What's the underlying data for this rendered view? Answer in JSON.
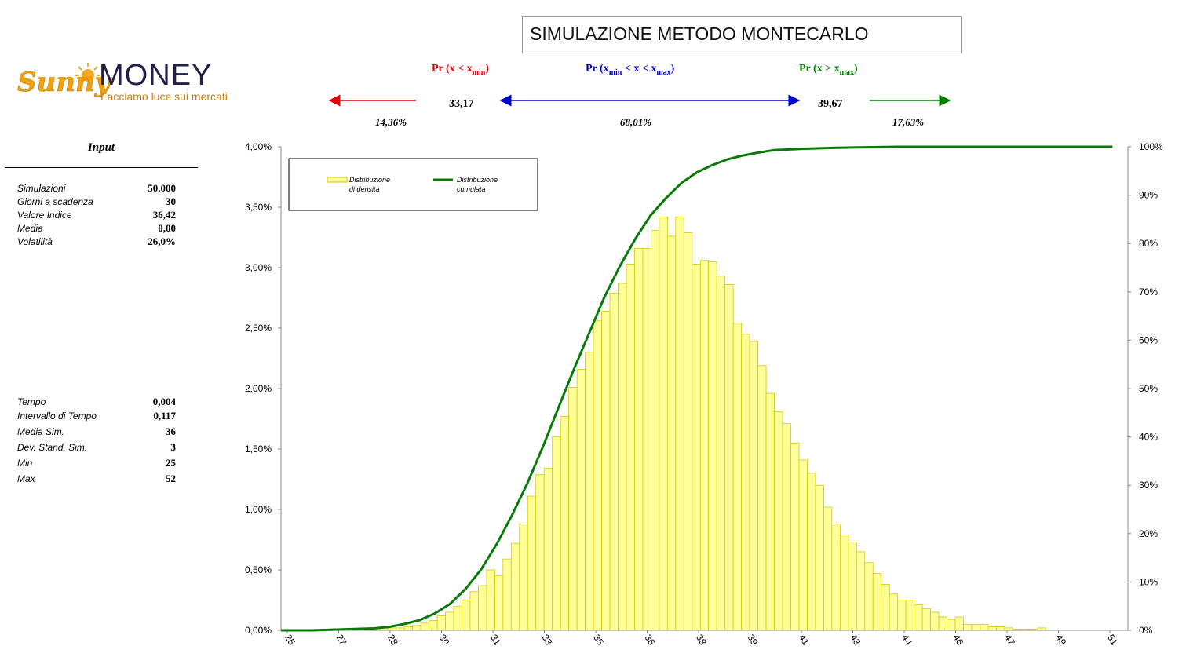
{
  "title": "SIMULAZIONE METODO MONTECARLO",
  "logo": {
    "sunny": "Sunny",
    "money": "MONEY",
    "tagline": "Facciamo luce sui mercati"
  },
  "probabilities": {
    "below": {
      "head": "Pr (x < x",
      "sub": "min",
      "tail": ")",
      "value": "14,36%",
      "color": "#e00000"
    },
    "between": {
      "head1": "Pr (x",
      "sub1": "min",
      "head2": " < x < x",
      "sub2": "max",
      "tail": ")",
      "value": "68,01%",
      "color": "#0000cc"
    },
    "above": {
      "head": "Pr (x > x",
      "sub": "max",
      "tail": ")",
      "value": "17,63%",
      "color": "#008000"
    },
    "xmin": "33,17",
    "xmax": "39,67"
  },
  "input": {
    "title": "Input",
    "params1": [
      {
        "label": "Simulazioni",
        "value": "50.000"
      },
      {
        "label": "Giorni a scadenza",
        "value": "30"
      },
      {
        "label": "Valore Indice",
        "value": "36,42"
      },
      {
        "label": "Media",
        "value": "0,00"
      },
      {
        "label": "Volatilità",
        "value": "26,0%"
      }
    ],
    "params2": [
      {
        "label": "Tempo",
        "value": "0,004"
      },
      {
        "label": "Intervallo di Tempo",
        "value": "0,117"
      },
      {
        "label": "Media Sim.",
        "value": "36"
      },
      {
        "label": "Dev. Stand. Sim.",
        "value": "3"
      },
      {
        "label": "Min",
        "value": "25"
      },
      {
        "label": "Max",
        "value": "52"
      }
    ]
  },
  "chart_data": {
    "type": "bar",
    "legend": [
      {
        "name": "Distribuzione di densità",
        "line1": "Distribuzione",
        "line2": "di densità",
        "color": "#ffff99",
        "edge": "#d4c800"
      },
      {
        "name": "Distribuzione cumulata",
        "line1": "Distribuzione",
        "line2": "cumulata",
        "color": "#087a08"
      }
    ],
    "legend_position": "top-left",
    "y_left_ticks": [
      "0,00%",
      "0,50%",
      "1,00%",
      "1,50%",
      "2,00%",
      "2,50%",
      "3,00%",
      "3,50%",
      "4,00%"
    ],
    "y_left_range": [
      0,
      4
    ],
    "y_right_ticks": [
      "0%",
      "10%",
      "20%",
      "30%",
      "40%",
      "50%",
      "60%",
      "70%",
      "80%",
      "90%",
      "100%"
    ],
    "y_right_range": [
      0,
      100
    ],
    "x_ticks": [
      "25",
      "27",
      "28",
      "30",
      "31",
      "33",
      "35",
      "36",
      "38",
      "39",
      "41",
      "43",
      "44",
      "46",
      "47",
      "49",
      "51"
    ],
    "series": [
      {
        "name": "Distribuzione di densità",
        "values": [
          0,
          0,
          0,
          0,
          0,
          0,
          0,
          0,
          0,
          0.01,
          0.01,
          0.02,
          0.02,
          0.02,
          0.02,
          0.03,
          0.04,
          0.06,
          0.08,
          0.12,
          0.15,
          0.2,
          0.25,
          0.32,
          0.37,
          0.5,
          0.45,
          0.59,
          0.72,
          0.88,
          1.11,
          1.29,
          1.34,
          1.6,
          1.77,
          2.01,
          2.16,
          2.3,
          2.56,
          2.64,
          2.79,
          2.87,
          3.03,
          3.16,
          3.16,
          3.31,
          3.42,
          3.26,
          3.42,
          3.29,
          3.03,
          3.06,
          3.05,
          2.93,
          2.86,
          2.54,
          2.45,
          2.39,
          2.19,
          1.96,
          1.81,
          1.71,
          1.55,
          1.41,
          1.3,
          1.2,
          1.02,
          0.88,
          0.79,
          0.73,
          0.65,
          0.56,
          0.47,
          0.38,
          0.3,
          0.25,
          0.25,
          0.21,
          0.18,
          0.15,
          0.11,
          0.09,
          0.11,
          0.05,
          0.05,
          0.05,
          0.03,
          0.03,
          0.02,
          0.01,
          0.01,
          0.01,
          0.02,
          0,
          0,
          0,
          0,
          0,
          0,
          0,
          0,
          0,
          0
        ]
      },
      {
        "name": "Distribuzione cumulata",
        "x": [
          25,
          26,
          27,
          28,
          28.5,
          29,
          29.5,
          30,
          30.5,
          31,
          31.5,
          32,
          32.5,
          33,
          33.5,
          34,
          34.5,
          35,
          35.5,
          36,
          36.5,
          37,
          37.5,
          38,
          38.5,
          39,
          39.5,
          40,
          40.5,
          41,
          42,
          43,
          44,
          45,
          46,
          47,
          48,
          49,
          50,
          51,
          52
        ],
        "values": [
          0,
          0,
          0.2,
          0.4,
          0.7,
          1.3,
          2.1,
          3.5,
          5.5,
          8.6,
          12.6,
          17.8,
          23.8,
          30.4,
          37.9,
          45.9,
          53.8,
          61.4,
          68.9,
          75.3,
          80.9,
          85.8,
          89.4,
          92.5,
          94.7,
          96.2,
          97.4,
          98.2,
          98.8,
          99.3,
          99.6,
          99.8,
          99.9,
          100,
          100,
          100,
          100,
          100,
          100,
          100,
          100
        ]
      }
    ]
  }
}
